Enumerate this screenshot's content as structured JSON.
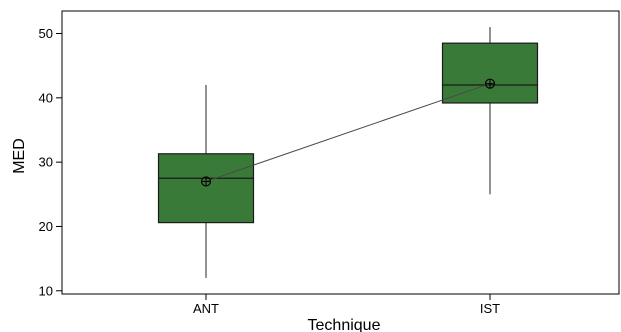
{
  "chart_data": {
    "type": "box",
    "xlabel": "Technique",
    "ylabel": "MED",
    "ylim": [
      9.5,
      53.5
    ],
    "yticks": [
      10,
      20,
      30,
      40,
      50
    ],
    "categories": [
      "ANT",
      "IST"
    ],
    "boxes": [
      {
        "category": "ANT",
        "whisker_low": 12,
        "q1": 20.6,
        "median": 27.5,
        "q3": 31.3,
        "whisker_high": 42,
        "mean": 27.0
      },
      {
        "category": "IST",
        "whisker_low": 25,
        "q1": 39.2,
        "median": 42.0,
        "q3": 48.5,
        "whisker_high": 51,
        "mean": 42.2
      }
    ],
    "mean_connect_line": true,
    "legend": "none",
    "grid": false,
    "box_color": "#3a7a38",
    "box_edge_color": "#1a1a1a",
    "line_color": "#4a4a4a"
  }
}
